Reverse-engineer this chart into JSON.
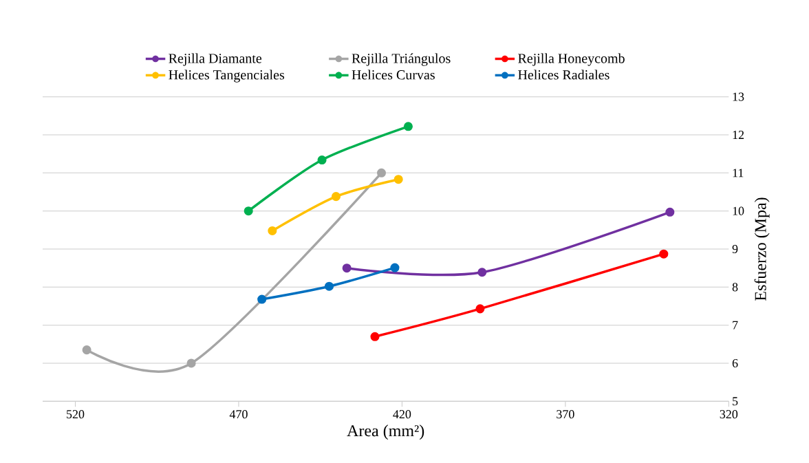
{
  "chart_data": {
    "type": "line",
    "xlabel": "Area (mm²)",
    "ylabel": "Esfuerzo  (Mpa)",
    "xlim": [
      530,
      320
    ],
    "xticks": [
      520,
      470,
      420,
      370,
      320
    ],
    "ylim": [
      5,
      13
    ],
    "yticks": [
      5,
      6,
      7,
      8,
      9,
      10,
      11,
      12,
      13
    ],
    "grid": "y",
    "legend": "top",
    "marker": "circle",
    "line_style": "solid",
    "series": [
      {
        "name": "Rejilla Diamante",
        "color": "#7030a0",
        "x": [
          436.9,
          395.5,
          338.0
        ],
        "values": [
          8.5,
          8.39,
          9.97
        ]
      },
      {
        "name": "Rejilla Triángulos",
        "color": "#a5a5a5",
        "x": [
          516.5,
          484.5,
          426.3
        ],
        "values": [
          6.35,
          6.0,
          11.0
        ]
      },
      {
        "name": "Rejilla Honeycomb",
        "color": "#ff0000",
        "x": [
          428.3,
          396.1,
          339.9
        ],
        "values": [
          6.7,
          7.43,
          8.87
        ]
      },
      {
        "name": "Helices Tangenciales",
        "color": "#ffc000",
        "x": [
          459.7,
          440.2,
          421.1
        ],
        "values": [
          9.48,
          10.38,
          10.83
        ]
      },
      {
        "name": "Helices Curvas",
        "color": "#00b050",
        "x": [
          467.0,
          444.5,
          418.1
        ],
        "values": [
          10.0,
          11.34,
          12.22
        ]
      },
      {
        "name": "Helices Radiales",
        "color": "#0070c0",
        "x": [
          462.9,
          442.3,
          422.2
        ],
        "values": [
          7.68,
          8.02,
          8.51
        ]
      }
    ]
  }
}
